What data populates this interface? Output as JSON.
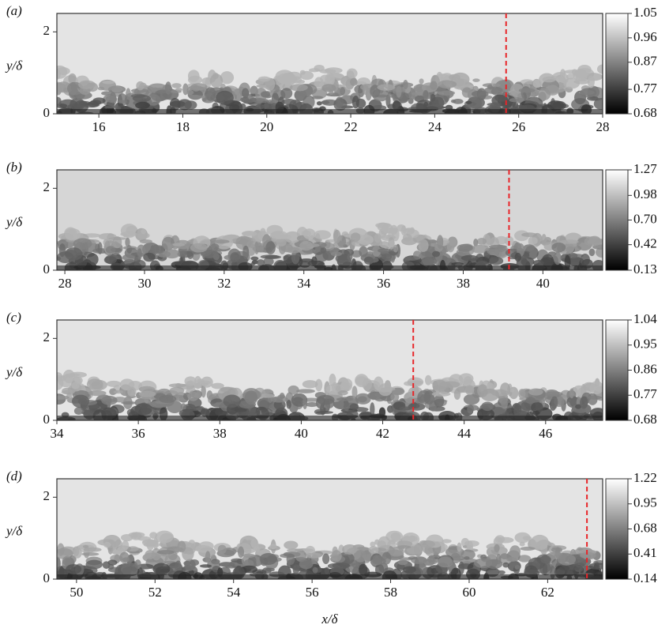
{
  "chart_data": [
    {
      "type": "image",
      "label": "(a)",
      "ylabel": "y/δ",
      "xlim": [
        15.0,
        28
      ],
      "xticks": [
        16,
        18,
        20,
        22,
        24,
        26,
        28
      ],
      "ylim": [
        0,
        2.45
      ],
      "yticks": [
        0,
        2
      ],
      "marker_x": 25.7,
      "marker_color": "#e8262a",
      "colorbar": {
        "lim": [
          0.68,
          1.05
        ],
        "ticks": [
          0.68,
          0.77,
          0.87,
          0.96,
          1.05
        ]
      }
    },
    {
      "type": "image",
      "label": "(b)",
      "ylabel": "y/δ",
      "xlim": [
        27.8,
        41.5
      ],
      "xticks": [
        28,
        30,
        32,
        34,
        36,
        38,
        40
      ],
      "ylim": [
        0,
        2.45
      ],
      "yticks": [
        0,
        2
      ],
      "marker_x": 39.15,
      "marker_color": "#e8262a",
      "colorbar": {
        "lim": [
          0.13,
          1.27
        ],
        "ticks": [
          0.13,
          0.42,
          {
            "value": 0.7,
            "label": "0.70"
          },
          0.98,
          1.27
        ]
      }
    },
    {
      "type": "image",
      "label": "(c)",
      "ylabel": "y/δ",
      "xlim": [
        34,
        47.4
      ],
      "xticks": [
        34,
        36,
        38,
        40,
        42,
        44,
        46
      ],
      "ylim": [
        0,
        2.45
      ],
      "yticks": [
        0,
        2
      ],
      "marker_x": 42.75,
      "marker_color": "#e8262a",
      "colorbar": {
        "lim": [
          0.68,
          1.04
        ],
        "ticks": [
          0.68,
          0.77,
          0.86,
          0.95,
          1.04
        ]
      }
    },
    {
      "type": "image",
      "label": "(d)",
      "ylabel": "y/δ",
      "xlabel": "x/δ",
      "xlim": [
        49.5,
        63.4
      ],
      "xticks": [
        50,
        52,
        54,
        56,
        58,
        60,
        62
      ],
      "ylim": [
        0,
        2.45
      ],
      "yticks": [
        0,
        2
      ],
      "marker_x": 63.0,
      "marker_color": "#e8262a",
      "colorbar": {
        "lim": [
          0.14,
          1.22
        ],
        "ticks": [
          0.14,
          0.41,
          0.68,
          0.95,
          1.22
        ]
      }
    }
  ]
}
